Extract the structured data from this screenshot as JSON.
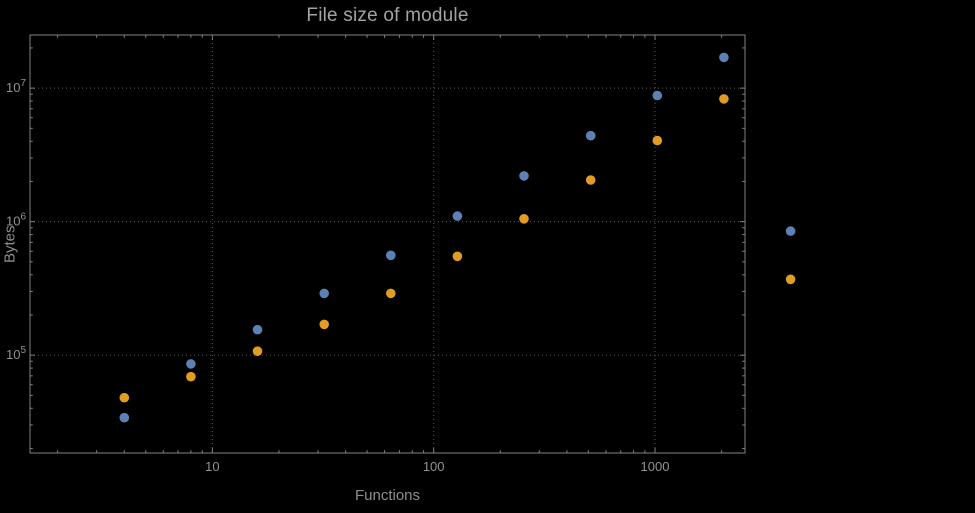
{
  "title": "File size of module",
  "axes": {
    "xlabel": "Functions",
    "ylabel": "Bytes"
  },
  "colors": {
    "background": "#000000",
    "frame": "#828282",
    "grid": "#5c5c5c",
    "tick_text": "#929292",
    "title_text": "#a3a3a3",
    "label_text": "#8e8e8e",
    "series1": "#5e81b5",
    "series2": "#e19c24"
  },
  "chart_data": {
    "type": "scatter",
    "title": "File size of module",
    "xlabel": "Functions",
    "ylabel": "Bytes",
    "x_scale": "log",
    "y_scale": "log",
    "xlim": [
      1.5,
      2550
    ],
    "ylim": [
      18500,
      25000000
    ],
    "grid": true,
    "legend": false,
    "x_ticks": [
      10,
      100,
      1000
    ],
    "x_tick_labels": [
      "10",
      "100",
      "1000"
    ],
    "y_ticks": [
      100000,
      1000000,
      10000000
    ],
    "y_tick_labels": [
      "10^5",
      "10^6",
      "10^7"
    ],
    "marker": {
      "shape": "circle",
      "radius_px": 4.8
    },
    "series": [
      {
        "name": "series-1-blue",
        "color": "#5e81b5",
        "x": [
          4,
          8,
          16,
          32,
          64,
          128,
          256,
          512,
          1024,
          2048,
          4096
        ],
        "y": [
          34000,
          86000,
          155000,
          290000,
          560000,
          1100000,
          2200000,
          4400000,
          8800000,
          17000000,
          850000
        ]
      },
      {
        "name": "series-2-orange",
        "color": "#e19c24",
        "x": [
          4,
          8,
          16,
          32,
          64,
          128,
          256,
          512,
          1024,
          2048,
          4096
        ],
        "y": [
          48000,
          69000,
          107000,
          170000,
          290000,
          550000,
          1050000,
          2050000,
          4050000,
          8300000,
          370000
        ]
      }
    ]
  }
}
